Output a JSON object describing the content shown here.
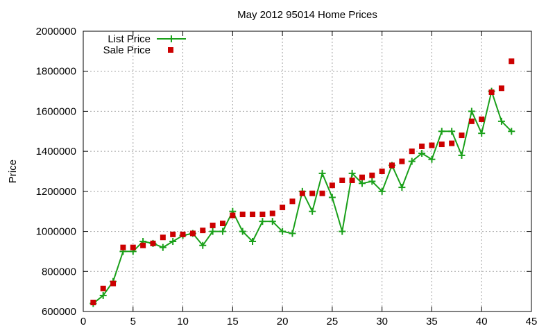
{
  "chart_data": {
    "type": "line",
    "title": "May 2012 95014 Home Prices",
    "xlabel": "",
    "ylabel": "Price",
    "xlim": [
      0,
      45
    ],
    "ylim": [
      600000,
      2000000
    ],
    "x_ticks": [
      0,
      5,
      10,
      15,
      20,
      25,
      30,
      35,
      40,
      45
    ],
    "y_ticks": [
      600000,
      800000,
      1000000,
      1200000,
      1400000,
      1600000,
      1800000,
      2000000
    ],
    "grid": true,
    "legend_placement": "top-left",
    "series": [
      {
        "name": "List Price",
        "style": "line-plus",
        "color": "#1aa01a",
        "x": [
          1,
          2,
          3,
          4,
          5,
          6,
          7,
          8,
          9,
          10,
          11,
          12,
          13,
          14,
          15,
          16,
          17,
          18,
          19,
          20,
          21,
          22,
          23,
          24,
          25,
          26,
          27,
          28,
          29,
          30,
          31,
          32,
          33,
          34,
          35,
          36,
          37,
          38,
          39,
          40,
          41,
          42,
          43
        ],
        "values": [
          640000,
          680000,
          750000,
          900000,
          900000,
          950000,
          940000,
          920000,
          950000,
          980000,
          990000,
          930000,
          1000000,
          1000000,
          1100000,
          1000000,
          950000,
          1050000,
          1050000,
          1000000,
          990000,
          1200000,
          1100000,
          1290000,
          1170000,
          1000000,
          1290000,
          1240000,
          1250000,
          1200000,
          1330000,
          1220000,
          1350000,
          1390000,
          1360000,
          1500000,
          1500000,
          1380000,
          1600000,
          1490000,
          1700000,
          1550000,
          1500000
        ]
      },
      {
        "name": "Sale Price",
        "style": "square-points",
        "color": "#cc0000",
        "x": [
          1,
          2,
          3,
          4,
          5,
          6,
          7,
          8,
          9,
          10,
          11,
          12,
          13,
          14,
          15,
          16,
          17,
          18,
          19,
          20,
          21,
          22,
          23,
          24,
          25,
          26,
          27,
          28,
          29,
          30,
          31,
          32,
          33,
          34,
          35,
          36,
          37,
          38,
          39,
          40,
          41,
          42,
          43
        ],
        "values": [
          645000,
          715000,
          740000,
          920000,
          920000,
          930000,
          940000,
          970000,
          985000,
          985000,
          990000,
          1005000,
          1030000,
          1040000,
          1080000,
          1085000,
          1085000,
          1085000,
          1090000,
          1120000,
          1150000,
          1190000,
          1190000,
          1190000,
          1230000,
          1255000,
          1255000,
          1270000,
          1280000,
          1300000,
          1330000,
          1350000,
          1400000,
          1425000,
          1430000,
          1435000,
          1440000,
          1480000,
          1550000,
          1560000,
          1695000,
          1715000,
          1850000
        ]
      }
    ]
  }
}
